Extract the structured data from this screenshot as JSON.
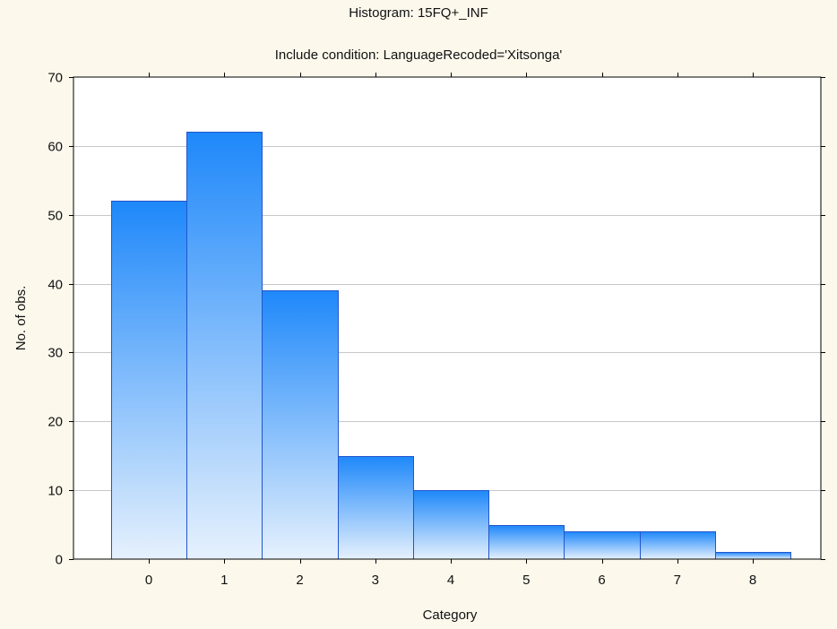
{
  "chart_data": {
    "type": "bar",
    "title": "Histogram: 15FQ+_INF",
    "subtitle": "Include condition: LanguageRecoded='Xitsonga'",
    "xlabel": "Category",
    "ylabel": "No. of obs.",
    "categories": [
      "0",
      "1",
      "2",
      "3",
      "4",
      "5",
      "6",
      "7",
      "8"
    ],
    "values": [
      52,
      62,
      39,
      15,
      10,
      5,
      4,
      4,
      1
    ],
    "ylim": [
      0,
      70
    ],
    "yticks": [
      0,
      10,
      20,
      30,
      40,
      50,
      60,
      70
    ],
    "grid": true,
    "legend": "none",
    "colors": {
      "bar_top": "#1e88fa",
      "bar_bottom": "#e6f1fd",
      "bar_stroke": "#2255cc",
      "background": "#fdf8ec",
      "plot_background": "#ffffff",
      "grid": "#c8c8c8"
    }
  }
}
